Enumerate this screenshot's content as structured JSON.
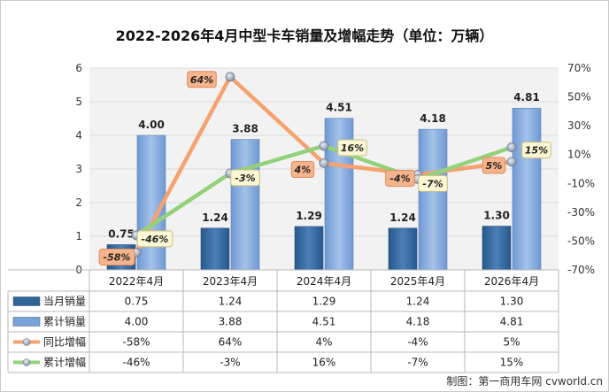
{
  "chart_data": {
    "type": "bar+line",
    "title": "2022-2026年4月中型卡车销量及增幅走势（单位：万辆）",
    "categories": [
      "2022年4月",
      "2023年4月",
      "2024年4月",
      "2025年4月",
      "2026年4月"
    ],
    "left_axis": {
      "ylim": [
        0,
        6
      ],
      "ticks": [
        "0",
        "1",
        "2",
        "3",
        "4",
        "5",
        "6"
      ]
    },
    "right_axis": {
      "ylim": [
        -70,
        70
      ],
      "ticks": [
        "70%",
        "50%",
        "30%",
        "10%",
        "-10%",
        "-30%",
        "-50%",
        "-70%"
      ]
    },
    "grid": true,
    "series": [
      {
        "name": "当月销量",
        "kind": "bar",
        "color": "#2f6499",
        "values": [
          0.75,
          1.24,
          1.29,
          1.24,
          1.3
        ],
        "labels": [
          "0.75",
          "1.24",
          "1.29",
          "1.24",
          "1.30"
        ],
        "table_values": [
          "0.75",
          "1.24",
          "1.29",
          "1.24",
          "1.30"
        ]
      },
      {
        "name": "累计销量",
        "kind": "bar",
        "color": "#7aa3d9",
        "values": [
          4.0,
          3.88,
          4.51,
          4.18,
          4.81
        ],
        "labels": [
          "4.00",
          "3.88",
          "4.51",
          "4.18",
          "4.81"
        ],
        "table_values": [
          "4.00",
          "3.88",
          "4.51",
          "4.18",
          "4.81"
        ]
      },
      {
        "name": "同比增幅",
        "kind": "line",
        "color": "#f4a26f",
        "values": [
          -58,
          64,
          4,
          -4,
          5
        ],
        "labels": [
          "-58%",
          "64%",
          "4%",
          "-4%",
          "5%"
        ],
        "table_values": [
          "-58%",
          "64%",
          "4%",
          "-4%",
          "5%"
        ]
      },
      {
        "name": "累计增幅",
        "kind": "line",
        "color": "#93d17a",
        "values": [
          -46,
          -3,
          16,
          -7,
          15
        ],
        "labels": [
          "-46%",
          "-3%",
          "16%",
          "-7%",
          "15%"
        ],
        "table_values": [
          "-46%",
          "-3%",
          "16%",
          "-7%",
          "15%"
        ]
      }
    ],
    "credit": "制图：第一商用车网 cvworld.cn"
  }
}
